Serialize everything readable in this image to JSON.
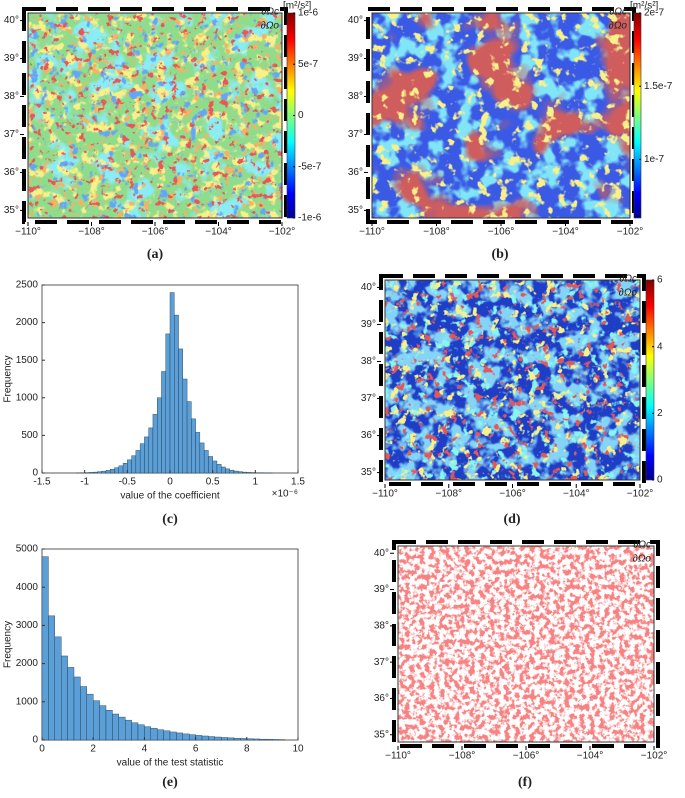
{
  "chart_data": [
    {
      "type": "map",
      "panel_label": "(a)",
      "boundary_labels": [
        "∂Ωc",
        "∂Ωo"
      ],
      "xlim": [
        -110,
        -102
      ],
      "xticks": [
        {
          "value": -110,
          "label": "−110°"
        },
        {
          "value": -108,
          "label": "−108°"
        },
        {
          "value": -106,
          "label": "−106°"
        },
        {
          "value": -104,
          "label": "−104°"
        },
        {
          "value": -102,
          "label": "−102°"
        }
      ],
      "ylim": [
        34.8,
        40.2
      ],
      "yticks": [
        {
          "value": 35,
          "label": "35°"
        },
        {
          "value": 36,
          "label": "36°"
        },
        {
          "value": 37,
          "label": "37°"
        },
        {
          "value": 38,
          "label": "38°"
        },
        {
          "value": 39,
          "label": "39°"
        },
        {
          "value": 40,
          "label": "40°"
        }
      ],
      "colorbar": {
        "unit": "[m²/s²]",
        "colormap": "jet",
        "clim": [
          -1e-06,
          1e-06
        ],
        "ticks": [
          {
            "value": -1e-06,
            "label": "-1e-6"
          },
          {
            "value": -5e-07,
            "label": "-5e-7"
          },
          0,
          {
            "value": 5e-07,
            "label": "5e-7"
          },
          {
            "value": 1e-06,
            "label": "1e-6"
          }
        ]
      }
    },
    {
      "type": "map",
      "panel_label": "(b)",
      "boundary_labels": [
        "∂Ωc",
        "∂Ωo"
      ],
      "xlim": [
        -110,
        -102
      ],
      "xticks": [
        {
          "value": -110,
          "label": "−110°"
        },
        {
          "value": -108,
          "label": "−108°"
        },
        {
          "value": -106,
          "label": "−106°"
        },
        {
          "value": -104,
          "label": "−104°"
        },
        {
          "value": -102,
          "label": "−102°"
        }
      ],
      "ylim": [
        34.8,
        40.2
      ],
      "yticks": [
        {
          "value": 35,
          "label": "35°"
        },
        {
          "value": 36,
          "label": "36°"
        },
        {
          "value": 37,
          "label": "37°"
        },
        {
          "value": 38,
          "label": "38°"
        },
        {
          "value": 39,
          "label": "39°"
        },
        {
          "value": 40,
          "label": "40°"
        }
      ],
      "colorbar": {
        "unit": "[m²/s²]",
        "colormap": "jet",
        "clim": [
          6e-08,
          2e-07
        ],
        "ticks": [
          {
            "value": 1e-07,
            "label": "1e-7"
          },
          {
            "value": 1.5e-07,
            "label": "1.5e-7"
          },
          {
            "value": 2e-07,
            "label": "2e-7"
          }
        ]
      }
    },
    {
      "type": "histogram",
      "panel_label": "(c)",
      "xlabel": "value of the coefficient",
      "ylabel": "Frequency",
      "x_multiplier": "×10⁻⁶",
      "color": "#5b9fd6",
      "xlim": [
        -1.5,
        1.5
      ],
      "xticks": [
        -1.5,
        -1,
        -0.5,
        0,
        0.5,
        1,
        1.5
      ],
      "ylim": [
        0,
        2500
      ],
      "yticks": [
        0,
        500,
        1000,
        1500,
        2000,
        2500
      ],
      "bins": [
        -1.1,
        -1.05,
        -1,
        -0.95,
        -0.9,
        -0.85,
        -0.8,
        -0.75,
        -0.7,
        -0.65,
        -0.6,
        -0.55,
        -0.5,
        -0.45,
        -0.4,
        -0.35,
        -0.3,
        -0.25,
        -0.2,
        -0.15,
        -0.1,
        -0.05,
        0,
        0.05,
        0.1,
        0.15,
        0.2,
        0.25,
        0.3,
        0.35,
        0.4,
        0.45,
        0.5,
        0.55,
        0.6,
        0.65,
        0.7,
        0.75,
        0.8,
        0.85,
        0.9,
        0.95,
        1,
        1.05,
        1.1,
        1.15,
        1.2
      ],
      "counts": [
        2,
        3,
        5,
        8,
        12,
        18,
        25,
        35,
        50,
        70,
        95,
        130,
        175,
        230,
        300,
        390,
        480,
        600,
        780,
        1000,
        1350,
        1850,
        2400,
        2100,
        1650,
        1250,
        950,
        720,
        540,
        400,
        300,
        220,
        160,
        115,
        80,
        55,
        38,
        26,
        18,
        12,
        8,
        6,
        4,
        3,
        2,
        1
      ]
    },
    {
      "type": "map",
      "panel_label": "(d)",
      "boundary_labels": [
        "∂Ωc",
        "∂Ωo"
      ],
      "xlim": [
        -110,
        -102
      ],
      "xticks": [
        {
          "value": -110,
          "label": "−110°"
        },
        {
          "value": -108,
          "label": "−108°"
        },
        {
          "value": -106,
          "label": "−106°"
        },
        {
          "value": -104,
          "label": "−104°"
        },
        {
          "value": -102,
          "label": "−102°"
        }
      ],
      "ylim": [
        34.8,
        40.2
      ],
      "yticks": [
        {
          "value": 35,
          "label": "35°"
        },
        {
          "value": 36,
          "label": "36°"
        },
        {
          "value": 37,
          "label": "37°"
        },
        {
          "value": 38,
          "label": "38°"
        },
        {
          "value": 39,
          "label": "39°"
        },
        {
          "value": 40,
          "label": "40°"
        }
      ],
      "colorbar": {
        "colormap": "jet",
        "clim": [
          0,
          6
        ],
        "ticks": [
          0,
          2,
          4,
          6
        ]
      }
    },
    {
      "type": "histogram",
      "panel_label": "(e)",
      "xlabel": "value of the test statistic",
      "ylabel": "Frequency",
      "color": "#5b9fd6",
      "xlim": [
        0,
        10
      ],
      "xticks": [
        0,
        2,
        4,
        6,
        8,
        10
      ],
      "ylim": [
        0,
        5000
      ],
      "yticks": [
        0,
        1000,
        2000,
        3000,
        4000,
        5000
      ],
      "bins": [
        0,
        0.25,
        0.5,
        0.75,
        1,
        1.25,
        1.5,
        1.75,
        2,
        2.25,
        2.5,
        2.75,
        3,
        3.25,
        3.5,
        3.75,
        4,
        4.25,
        4.5,
        4.75,
        5,
        5.25,
        5.5,
        5.75,
        6,
        6.25,
        6.5,
        6.75,
        7,
        7.25,
        7.5,
        7.75,
        8,
        8.25,
        8.5,
        8.75,
        9,
        9.25,
        9.5
      ],
      "counts": [
        4800,
        3250,
        2700,
        2200,
        1900,
        1650,
        1400,
        1200,
        1030,
        900,
        780,
        680,
        600,
        520,
        450,
        400,
        350,
        310,
        270,
        240,
        210,
        185,
        160,
        140,
        120,
        105,
        90,
        78,
        66,
        56,
        48,
        40,
        34,
        28,
        22,
        18,
        14,
        10
      ]
    },
    {
      "type": "map",
      "panel_label": "(f)",
      "boundary_labels": [
        "∂Ωc",
        "∂Ωo"
      ],
      "xlim": [
        -110,
        -102
      ],
      "xticks": [
        {
          "value": -110,
          "label": "−110°"
        },
        {
          "value": -108,
          "label": "−108°"
        },
        {
          "value": -106,
          "label": "−106°"
        },
        {
          "value": -104,
          "label": "−104°"
        },
        {
          "value": -102,
          "label": "−102°"
        }
      ],
      "ylim": [
        34.8,
        40.2
      ],
      "yticks": [
        {
          "value": 35,
          "label": "35°"
        },
        {
          "value": 36,
          "label": "36°"
        },
        {
          "value": 37,
          "label": "37°"
        },
        {
          "value": 38,
          "label": "38°"
        },
        {
          "value": 39,
          "label": "39°"
        },
        {
          "value": 40,
          "label": "40°"
        }
      ]
    }
  ]
}
